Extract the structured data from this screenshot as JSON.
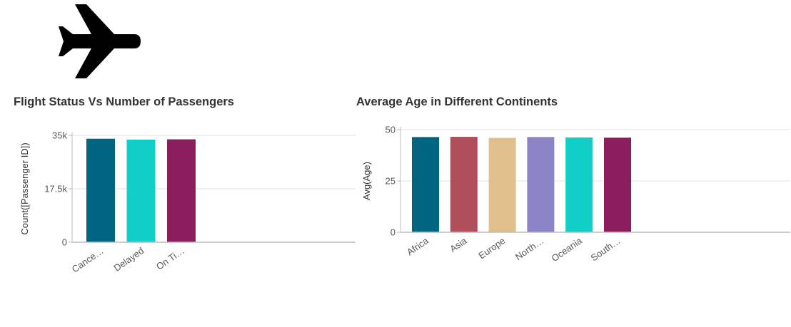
{
  "header": {
    "icon": "airplane-icon",
    "icon_color": "#000000"
  },
  "charts": {
    "chart_data": [
      {
        "type": "bar",
        "title": "Flight Status Vs Number of Passengers",
        "xlabel": "",
        "ylabel": "Count([Passenger ID])",
        "categories": [
          "Cance…",
          "Delayed",
          "On Ti…"
        ],
        "values": [
          33900,
          33600,
          33700
        ],
        "ylim": [
          0,
          35000
        ],
        "yticks": [
          0,
          17500,
          35000
        ],
        "ytick_labels": [
          "0",
          "17.5k",
          "35k"
        ],
        "colors": [
          "#006580",
          "#10cfc9",
          "#8a1e5c"
        ],
        "grid": true,
        "legend": "none"
      },
      {
        "type": "bar",
        "title": "Average Age in Different Continents",
        "xlabel": "",
        "ylabel": "Avg(Age)",
        "categories": [
          "Africa",
          "Asia",
          "Europe",
          "North…",
          "Oceania",
          "South…"
        ],
        "values": [
          46.4,
          46.5,
          46.0,
          46.4,
          46.2,
          46.1
        ],
        "ylim": [
          0,
          50
        ],
        "yticks": [
          0,
          25,
          50
        ],
        "ytick_labels": [
          "0",
          "25",
          "50"
        ],
        "colors": [
          "#006580",
          "#b04e59",
          "#e0bf8c",
          "#8b85c8",
          "#10cfc9",
          "#8a1e5c"
        ],
        "grid": true,
        "legend": "none"
      }
    ]
  }
}
